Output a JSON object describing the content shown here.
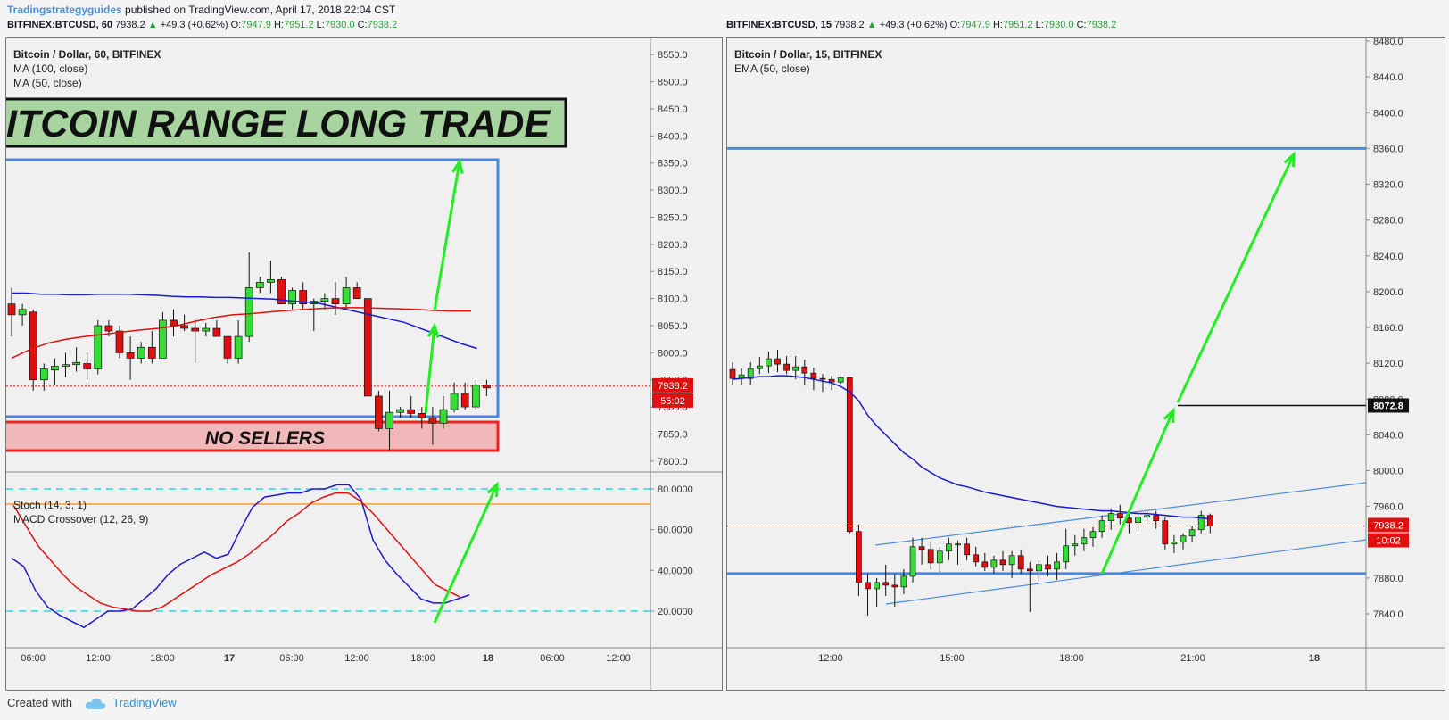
{
  "header": {
    "author": "Tradingstrategyguides",
    "published": "published on TradingView.com, April 17, 2018 22:04 CST"
  },
  "left_symbol": {
    "ticker": "BITFINEX:BTCUSD, 60",
    "price": "7938.2",
    "change": "+49.3 (+0.62%)",
    "o_label": "O:",
    "o": "7947.9",
    "h_label": "H:",
    "h": "7951.2",
    "l_label": "L:",
    "l": "7930.0",
    "c_label": "C:",
    "c": "7938.2"
  },
  "right_symbol": {
    "ticker": "BITFINEX:BTCUSD, 15",
    "price": "7938.2",
    "change": "+49.3 (+0.62%)",
    "o_label": "O:",
    "o": "7947.9",
    "h_label": "H:",
    "h": "7951.2",
    "l_label": "L:",
    "l": "7930.0",
    "c_label": "C:",
    "c": "7938.2"
  },
  "left_legend": {
    "title": "Bitcoin / Dollar, 60, BITFINEX",
    "ma100": "MA (100, close)",
    "ma50": "MA (50, close)"
  },
  "right_legend": {
    "title": "Bitcoin / Dollar, 15, BITFINEX",
    "ema": "EMA (50, close)"
  },
  "osc_legend": {
    "stoch": "Stoch (14, 3, 1)",
    "macd": "MACD Crossover (12, 26, 9)"
  },
  "annotations": {
    "banner": "ITCOIN RANGE LONG TRADE",
    "no_sellers": "NO SELLERS"
  },
  "footer": {
    "created_with": "Created with",
    "brand": "TradingView"
  },
  "colors": {
    "up": "#33dd33",
    "down": "#e01010",
    "ma_blue": "#1a1acc",
    "ma_red": "#e01010",
    "box": "#4a88dd",
    "arrow": "#22ee22",
    "banner_bg": "#a8d4a0",
    "sellers_bg": "#f0b8b8"
  },
  "chart_data": [
    {
      "id": "left-60",
      "type": "candlestick",
      "ylim": [
        7780,
        8580
      ],
      "y_ticks": [
        8550,
        8500,
        8450,
        8400,
        8350,
        8300,
        8250,
        8200,
        8150,
        8100,
        8050,
        8000,
        7950,
        7900,
        7850,
        7800
      ],
      "y_tick_labels": [
        "8550.0",
        "8500.0",
        "8450.0",
        "8400.0",
        "8350.0",
        "8300.0",
        "8250.0",
        "8200.0",
        "8150.0",
        "8100.0",
        "8050.0",
        "8000.0",
        "7950.0",
        "7900.0",
        "7850.0",
        "7800.0"
      ],
      "x_tick_labels": [
        "06:00",
        "12:00",
        "18:00",
        "17",
        "06:00",
        "12:00",
        "18:00",
        "18",
        "06:00",
        "12:00"
      ],
      "last_price": "7938.2",
      "countdown": "55:02",
      "ohlc": [
        [
          8090,
          8120,
          8030,
          8070
        ],
        [
          8070,
          8090,
          8050,
          8080
        ],
        [
          8075,
          8080,
          7930,
          7950
        ],
        [
          7950,
          7980,
          7930,
          7970
        ],
        [
          7968,
          7990,
          7940,
          7975
        ],
        [
          7975,
          8000,
          7955,
          7978
        ],
        [
          7978,
          8010,
          7965,
          7982
        ],
        [
          7980,
          8000,
          7950,
          7970
        ],
        [
          7970,
          8060,
          7960,
          8050
        ],
        [
          8050,
          8060,
          8030,
          8040
        ],
        [
          8040,
          8050,
          7990,
          8000
        ],
        [
          8000,
          8030,
          7950,
          7990
        ],
        [
          7990,
          8020,
          7980,
          8010
        ],
        [
          8010,
          8040,
          7980,
          7990
        ],
        [
          7990,
          8075,
          7990,
          8060
        ],
        [
          8060,
          8080,
          8030,
          8050
        ],
        [
          8050,
          8070,
          8040,
          8045
        ],
        [
          8045,
          8060,
          7980,
          8040
        ],
        [
          8040,
          8055,
          8030,
          8045
        ],
        [
          8045,
          8060,
          8030,
          8030
        ],
        [
          8030,
          8030,
          7980,
          7990
        ],
        [
          7990,
          8060,
          7980,
          8030
        ],
        [
          8030,
          8185,
          8020,
          8120
        ],
        [
          8120,
          8140,
          8110,
          8130
        ],
        [
          8130,
          8170,
          8110,
          8135
        ],
        [
          8135,
          8140,
          8090,
          8090
        ],
        [
          8090,
          8120,
          8080,
          8115
        ],
        [
          8115,
          8130,
          8080,
          8090
        ],
        [
          8090,
          8100,
          8040,
          8095
        ],
        [
          8095,
          8110,
          8080,
          8100
        ],
        [
          8100,
          8130,
          8070,
          8090
        ],
        [
          8090,
          8140,
          8080,
          8120
        ],
        [
          8120,
          8130,
          8100,
          8100
        ],
        [
          8100,
          8100,
          7920,
          7920
        ],
        [
          7920,
          7930,
          7855,
          7860
        ],
        [
          7860,
          7930,
          7820,
          7890
        ],
        [
          7890,
          7900,
          7880,
          7895
        ],
        [
          7895,
          7920,
          7880,
          7888
        ],
        [
          7888,
          7900,
          7860,
          7880
        ],
        [
          7880,
          7900,
          7830,
          7870
        ],
        [
          7870,
          7920,
          7860,
          7895
        ],
        [
          7895,
          7945,
          7890,
          7925
        ],
        [
          7925,
          7945,
          7895,
          7900
        ],
        [
          7900,
          7950,
          7895,
          7940
        ],
        [
          7940,
          7950,
          7920,
          7935
        ]
      ],
      "ma_blue": [
        8110,
        8110,
        8108,
        8108,
        8107,
        8107,
        8108,
        8108,
        8108,
        8107,
        8106,
        8104,
        8103,
        8103,
        8102,
        8102,
        8101,
        8100,
        8099,
        8096,
        8094,
        8092,
        8086,
        8080,
        8074,
        8068,
        8062,
        8056,
        8046,
        8036,
        8026,
        8016,
        8008
      ],
      "ma_red": [
        7990,
        8006,
        8018,
        8025,
        8030,
        8034,
        8038,
        8042,
        8045,
        8050,
        8058,
        8065,
        8070,
        8072,
        8075,
        8078,
        8080,
        8082,
        8083,
        8083,
        8082,
        8081,
        8080,
        8078,
        8077,
        8077
      ]
    },
    {
      "id": "left-oscillator",
      "type": "line",
      "ylim": [
        0,
        100
      ],
      "y_ticks": [
        80,
        60,
        40,
        20
      ],
      "y_tick_labels": [
        "80.0000",
        "60.0000",
        "40.0000",
        "20.0000"
      ],
      "upper_band": 80,
      "lower_band": 20,
      "series": [
        {
          "name": "Stoch (14, 3, 1)",
          "values": [
            46,
            42,
            30,
            22,
            18,
            15,
            12,
            16,
            20,
            20,
            21,
            26,
            31,
            38,
            43,
            46,
            49,
            46,
            48,
            60,
            71,
            76,
            77,
            78,
            78,
            80,
            80,
            82,
            82,
            75,
            55,
            45,
            38,
            32,
            26,
            24,
            24,
            26,
            28
          ]
        },
        {
          "name": "MACD Crossover (12, 26, 9)",
          "values": [
            72,
            62,
            52,
            45,
            38,
            32,
            28,
            24,
            22,
            21,
            20,
            20,
            22,
            26,
            30,
            34,
            38,
            41,
            44,
            48,
            53,
            58,
            64,
            68,
            73,
            76,
            78,
            78,
            74,
            68,
            61,
            54,
            47,
            40,
            33,
            30,
            27
          ]
        }
      ]
    },
    {
      "id": "right-15",
      "type": "candlestick",
      "ylim": [
        7810,
        8490
      ],
      "y_ticks": [
        8480,
        8440,
        8400,
        8360,
        8320,
        8280,
        8240,
        8200,
        8160,
        8120,
        8080,
        8040,
        8000,
        7960,
        7920,
        7880,
        7840
      ],
      "y_tick_labels": [
        "8480.0",
        "8440.0",
        "8400.0",
        "8360.0",
        "8320.0",
        "8280.0",
        "8240.0",
        "8200.0",
        "8160.0",
        "8120.0",
        "8080.0",
        "8040.0",
        "8000.0",
        "7960.0",
        "7920.0",
        "7880.0",
        "7840.0"
      ],
      "x_tick_labels": [
        "12:00",
        "15:00",
        "18:00",
        "21:00",
        "18"
      ],
      "last_price": "7938.2",
      "countdown": "10:02",
      "target_label": "8072.8",
      "ohlc": [
        [
          8113,
          8121,
          8096,
          8103
        ],
        [
          8103,
          8114,
          8096,
          8107
        ],
        [
          8103,
          8121,
          8096,
          8114
        ],
        [
          8114,
          8127,
          8108,
          8117
        ],
        [
          8117,
          8133,
          8109,
          8125
        ],
        [
          8125,
          8135,
          8110,
          8119
        ],
        [
          8119,
          8128,
          8108,
          8112
        ],
        [
          8112,
          8128,
          8102,
          8116
        ],
        [
          8116,
          8124,
          8095,
          8109
        ],
        [
          8109,
          8115,
          8090,
          8103
        ],
        [
          8103,
          8108,
          8088,
          8102
        ],
        [
          8102,
          8106,
          8090,
          8099
        ],
        [
          8099,
          8105,
          8097,
          8104
        ],
        [
          8104,
          8104,
          7930,
          7932
        ],
        [
          7932,
          7940,
          7860,
          7875
        ],
        [
          7875,
          7885,
          7838,
          7868
        ],
        [
          7868,
          7880,
          7848,
          7875
        ],
        [
          7875,
          7895,
          7860,
          7872
        ],
        [
          7872,
          7885,
          7848,
          7870
        ],
        [
          7870,
          7890,
          7862,
          7882
        ],
        [
          7882,
          7925,
          7875,
          7915
        ],
        [
          7915,
          7925,
          7895,
          7912
        ],
        [
          7912,
          7920,
          7890,
          7897
        ],
        [
          7897,
          7915,
          7887,
          7910
        ],
        [
          7910,
          7925,
          7900,
          7918
        ],
        [
          7918,
          7922,
          7895,
          7918
        ],
        [
          7918,
          7925,
          7900,
          7906
        ],
        [
          7906,
          7915,
          7893,
          7898
        ],
        [
          7898,
          7908,
          7888,
          7892
        ],
        [
          7892,
          7905,
          7885,
          7900
        ],
        [
          7900,
          7910,
          7888,
          7895
        ],
        [
          7895,
          7910,
          7880,
          7905
        ],
        [
          7905,
          7912,
          7885,
          7890
        ],
        [
          7890,
          7898,
          7842,
          7888
        ],
        [
          7888,
          7900,
          7876,
          7895
        ],
        [
          7895,
          7905,
          7882,
          7890
        ],
        [
          7890,
          7908,
          7878,
          7898
        ],
        [
          7898,
          7935,
          7890,
          7916
        ],
        [
          7916,
          7928,
          7905,
          7918
        ],
        [
          7918,
          7935,
          7910,
          7925
        ],
        [
          7925,
          7937,
          7915,
          7932
        ],
        [
          7932,
          7950,
          7925,
          7944
        ],
        [
          7944,
          7958,
          7934,
          7952
        ],
        [
          7952,
          7962,
          7940,
          7947
        ],
        [
          7947,
          7955,
          7930,
          7942
        ],
        [
          7942,
          7952,
          7932,
          7948
        ],
        [
          7948,
          7958,
          7940,
          7950
        ],
        [
          7950,
          7955,
          7935,
          7944
        ],
        [
          7944,
          7948,
          7912,
          7918
        ],
        [
          7918,
          7928,
          7908,
          7920
        ],
        [
          7920,
          7930,
          7912,
          7927
        ],
        [
          7927,
          7938,
          7920,
          7934
        ],
        [
          7934,
          7955,
          7930,
          7950
        ],
        [
          7950,
          7952,
          7930,
          7938
        ]
      ],
      "ema_blue": [
        8102,
        8103,
        8104,
        8105,
        8105,
        8106,
        8106,
        8105,
        8104,
        8102,
        8100,
        8098,
        8094,
        8088,
        8078,
        8062,
        8050,
        8040,
        8030,
        8020,
        8013,
        8004,
        7998,
        7992,
        7988,
        7984,
        7982,
        7979,
        7976,
        7974,
        7972,
        7970,
        7968,
        7966,
        7964,
        7962,
        7960,
        7959,
        7958,
        7957,
        7956,
        7955,
        7955,
        7954,
        7953,
        7952,
        7952,
        7951,
        7950,
        7949,
        7948,
        7948,
        7947,
        7946
      ],
      "resistance": 8360,
      "support": 7885
    }
  ]
}
